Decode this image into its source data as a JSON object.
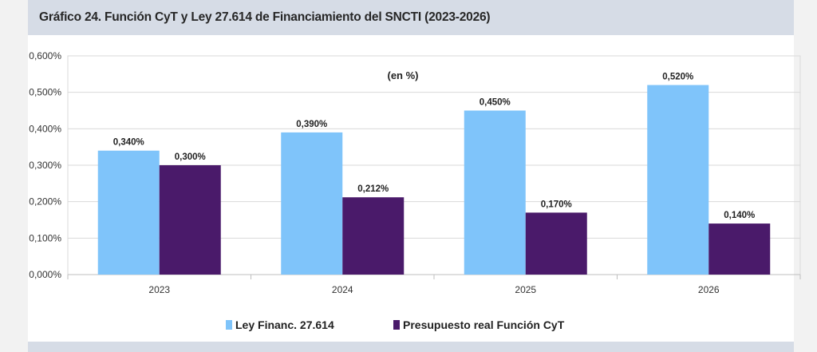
{
  "header": {
    "title": "Gráfico 24. Función CyT y Ley 27.614 de Financiamiento del SNCTI (2023-2026)"
  },
  "chart_data": {
    "type": "bar",
    "title": "Gráfico 24. Función CyT y Ley 27.614 de Financiamiento del SNCTI (2023-2026)",
    "subtitle": "(en %)",
    "categories": [
      "2023",
      "2024",
      "2025",
      "2026"
    ],
    "series": [
      {
        "name": "Ley Financ. 27.614",
        "values": [
          0.34,
          0.39,
          0.45,
          0.52
        ],
        "labels": [
          "0,340%",
          "0,390%",
          "0,450%",
          "0,520%"
        ],
        "color": "#7fc4fa"
      },
      {
        "name": "Presupuesto real Función CyT",
        "values": [
          0.3,
          0.212,
          0.17,
          0.14
        ],
        "labels": [
          "0,300%",
          "0,212%",
          "0,170%",
          "0,140%"
        ],
        "color": "#4a1a6a"
      }
    ],
    "yticks": [
      "0,000%",
      "0,100%",
      "0,200%",
      "0,300%",
      "0,400%",
      "0,500%",
      "0,600%"
    ],
    "ylim": [
      0,
      0.6
    ],
    "xlabel": "",
    "ylabel": "",
    "grid": true,
    "legend": "bottom"
  }
}
